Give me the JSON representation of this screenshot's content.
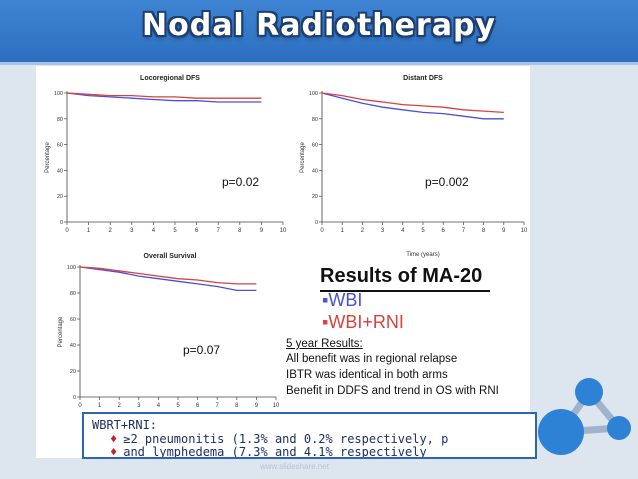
{
  "slide_title": "Nodal Radiotherapy",
  "colors": {
    "wbi": "#4a4fd8",
    "wbi_rni": "#d8423c",
    "accent": "#2c6fc0"
  },
  "chart_data": [
    {
      "type": "line",
      "title": "Locoregional DFS",
      "ylabel": "Percentage",
      "xlabel": "",
      "ylim": [
        0,
        100
      ],
      "yticks": [
        0,
        20,
        40,
        60,
        80,
        100
      ],
      "xlim": [
        0,
        10
      ],
      "xticks": [
        "0",
        "1",
        "2",
        "3",
        "4",
        "5",
        "6",
        "7",
        "8",
        "9",
        "10"
      ],
      "annotation": "p=0.02",
      "x": [
        0,
        1,
        2,
        3,
        4,
        5,
        6,
        7,
        8,
        9
      ],
      "series": [
        {
          "name": "WBI",
          "color": "#4a4fd8",
          "values": [
            100,
            98,
            97,
            96,
            95,
            94,
            94,
            93,
            93,
            93
          ]
        },
        {
          "name": "WBI+RNI",
          "color": "#d8423c",
          "values": [
            100,
            99,
            98,
            98,
            97,
            97,
            96,
            96,
            96,
            96
          ]
        }
      ]
    },
    {
      "type": "line",
      "title": "Distant DFS",
      "ylabel": "Percentage",
      "xlabel": "Time (years)",
      "ylim": [
        0,
        100
      ],
      "yticks": [
        0,
        20,
        40,
        60,
        80,
        100
      ],
      "xlim": [
        0,
        10
      ],
      "xticks": [
        "0",
        "1",
        "2",
        "3",
        "4",
        "5",
        "6",
        "7",
        "8",
        "9",
        "10"
      ],
      "annotation": "p=0.002",
      "x": [
        0,
        1,
        2,
        3,
        4,
        5,
        6,
        7,
        8,
        9
      ],
      "series": [
        {
          "name": "WBI",
          "color": "#4a4fd8",
          "values": [
            100,
            96,
            92,
            89,
            87,
            85,
            84,
            82,
            80,
            80
          ]
        },
        {
          "name": "WBI+RNI",
          "color": "#d8423c",
          "values": [
            100,
            98,
            95,
            93,
            91,
            90,
            89,
            87,
            86,
            85
          ]
        }
      ]
    },
    {
      "type": "line",
      "title": "Overall Survival",
      "ylabel": "Percentage",
      "xlabel": "",
      "ylim": [
        0,
        100
      ],
      "yticks": [
        0,
        20,
        40,
        60,
        80,
        100
      ],
      "xlim": [
        0,
        10
      ],
      "xticks": [
        "0",
        "1",
        "2",
        "3",
        "4",
        "5",
        "6",
        "7",
        "8",
        "9",
        "10"
      ],
      "annotation": "p=0.07",
      "x": [
        0,
        1,
        2,
        3,
        4,
        5,
        6,
        7,
        8,
        9
      ],
      "series": [
        {
          "name": "WBI",
          "color": "#4a4fd8",
          "values": [
            100,
            98,
            96,
            93,
            91,
            89,
            87,
            85,
            82,
            82
          ]
        },
        {
          "name": "WBI+RNI",
          "color": "#d8423c",
          "values": [
            100,
            99,
            97,
            95,
            93,
            91,
            90,
            88,
            87,
            87
          ]
        }
      ]
    }
  ],
  "results": {
    "title": "Results of MA-20",
    "legend": [
      {
        "label": "▪WBI",
        "color": "#4a4fd8"
      },
      {
        "label": "▪WBI+RNI",
        "color": "#d8423c"
      }
    ],
    "five_year_heading": "5 year Results:",
    "lines": [
      "All benefit was in regional relapse",
      "IBTR was identical in both arms",
      "Benefit in DDFS and trend in OS with RNI"
    ]
  },
  "note": {
    "heading": "WBRT+RNI:",
    "bullets": [
      "≥2 pneumonitis (1.3% and 0.2% respectively, p",
      "and lymphedema (7.3% and 4.1% respectively"
    ]
  },
  "watermark": "www.slideshare.net"
}
